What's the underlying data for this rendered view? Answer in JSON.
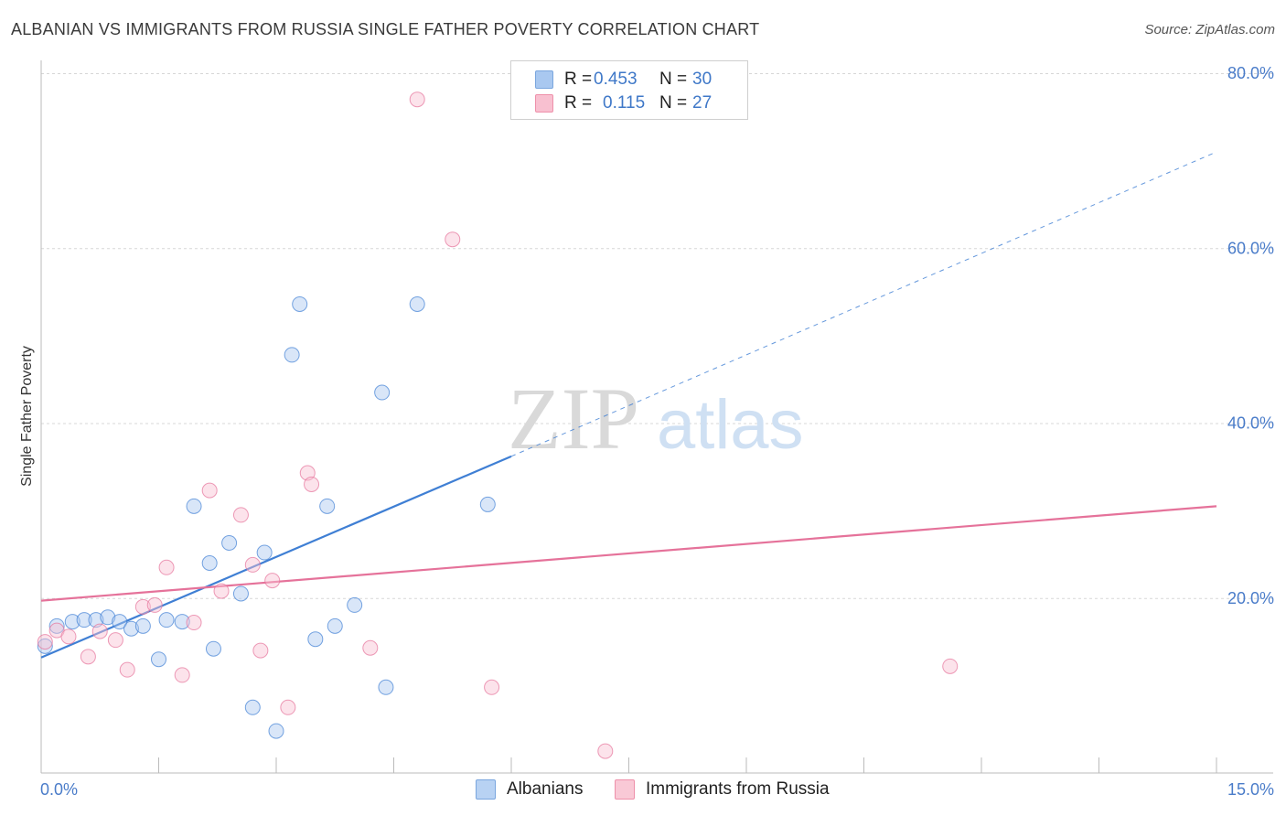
{
  "header": {
    "title": "ALBANIAN VS IMMIGRANTS FROM RUSSIA SINGLE FATHER POVERTY CORRELATION CHART",
    "source": "Source: ZipAtlas.com"
  },
  "watermark": {
    "zip": "ZIP",
    "atlas": "atlas"
  },
  "legend": {
    "r_label": "R =",
    "n_label": "N =",
    "rows": [
      {
        "r": "0.453",
        "n": "30",
        "color": "#a9c8f0",
        "border": "#7aa6de"
      },
      {
        "r": "0.115",
        "n": "27",
        "color": "#f8c0d0",
        "border": "#ee90aa"
      }
    ]
  },
  "bottom_legend": [
    {
      "label": "Albanians",
      "color": "#b8d2f3",
      "border": "#7aa6de"
    },
    {
      "label": "Immigrants from Russia",
      "color": "#f9c9d6",
      "border": "#ee90aa"
    }
  ],
  "chart_data": {
    "type": "scatter",
    "xlabel": "",
    "ylabel": "Single Father Poverty",
    "xlim": [
      0,
      15
    ],
    "ylim": [
      0,
      80
    ],
    "x_tick_labels": [
      "0.0%",
      "15.0%"
    ],
    "y_ticks": [
      20,
      40,
      60,
      80
    ],
    "y_tick_labels": [
      "20.0%",
      "40.0%",
      "60.0%",
      "80.0%"
    ],
    "grid": "horizontal dashed",
    "series": [
      {
        "name": "Albanians",
        "color": "#3f7fd4",
        "fill": "rgba(170,200,240,0.45)",
        "points": [
          [
            0.05,
            14.5
          ],
          [
            0.2,
            16.8
          ],
          [
            0.4,
            17.3
          ],
          [
            0.55,
            17.5
          ],
          [
            0.7,
            17.5
          ],
          [
            0.85,
            17.8
          ],
          [
            1.0,
            17.3
          ],
          [
            1.15,
            16.5
          ],
          [
            1.3,
            16.8
          ],
          [
            1.5,
            13.0
          ],
          [
            1.6,
            17.5
          ],
          [
            1.8,
            17.3
          ],
          [
            1.95,
            30.5
          ],
          [
            2.15,
            24.0
          ],
          [
            2.2,
            14.2
          ],
          [
            2.4,
            26.3
          ],
          [
            2.55,
            20.5
          ],
          [
            2.7,
            7.5
          ],
          [
            2.85,
            25.2
          ],
          [
            3.0,
            4.8
          ],
          [
            3.2,
            47.8
          ],
          [
            3.3,
            53.6
          ],
          [
            3.5,
            15.3
          ],
          [
            3.65,
            30.5
          ],
          [
            3.75,
            16.8
          ],
          [
            4.0,
            19.2
          ],
          [
            4.35,
            43.5
          ],
          [
            4.4,
            9.8
          ],
          [
            4.8,
            53.6
          ],
          [
            5.7,
            30.7
          ]
        ],
        "trend": {
          "x0": 0.0,
          "y0": 13.2,
          "x1": 6.0,
          "y1": 36.2,
          "dashed_to_x": 15.0,
          "dashed_to_y": 71.0
        }
      },
      {
        "name": "Immigrants from Russia",
        "color": "#e5729a",
        "fill": "rgba(249,192,210,0.45)",
        "points": [
          [
            0.05,
            15.0
          ],
          [
            0.2,
            16.3
          ],
          [
            0.35,
            15.6
          ],
          [
            0.6,
            13.3
          ],
          [
            0.75,
            16.2
          ],
          [
            0.95,
            15.2
          ],
          [
            1.1,
            11.8
          ],
          [
            1.3,
            19.0
          ],
          [
            1.45,
            19.2
          ],
          [
            1.6,
            23.5
          ],
          [
            1.8,
            11.2
          ],
          [
            1.95,
            17.2
          ],
          [
            2.15,
            32.3
          ],
          [
            2.3,
            20.8
          ],
          [
            2.55,
            29.5
          ],
          [
            2.7,
            23.8
          ],
          [
            2.8,
            14.0
          ],
          [
            2.95,
            22.0
          ],
          [
            3.15,
            7.5
          ],
          [
            3.4,
            34.3
          ],
          [
            3.45,
            33.0
          ],
          [
            4.2,
            14.3
          ],
          [
            4.8,
            77.0
          ],
          [
            5.25,
            61.0
          ],
          [
            5.75,
            9.8
          ],
          [
            7.2,
            2.5
          ],
          [
            11.6,
            12.2
          ]
        ],
        "trend": {
          "x0": 0.0,
          "y0": 19.7,
          "x1": 15.0,
          "y1": 30.5
        }
      }
    ]
  }
}
